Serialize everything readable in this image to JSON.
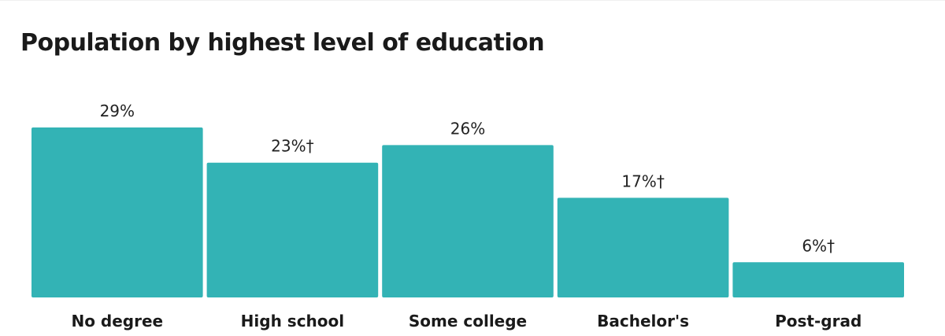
{
  "title": "Population by highest level of education",
  "colors": {
    "bar": "#33b3b5",
    "background": "#ffffff"
  },
  "chart_data": {
    "type": "bar",
    "title": "Population by highest level of education",
    "categories": [
      "No degree",
      "High school",
      "Some college",
      "Bachelor's",
      "Post-grad"
    ],
    "values": [
      29,
      23,
      26,
      17,
      6
    ],
    "labels": [
      "29%",
      "23%†",
      "26%",
      "17%†",
      "6%†"
    ],
    "xlabel": "",
    "ylabel": "",
    "grid": false,
    "legend": "none"
  }
}
